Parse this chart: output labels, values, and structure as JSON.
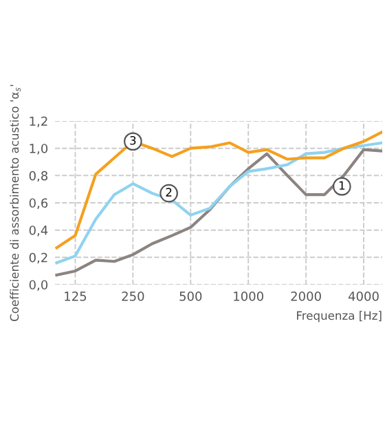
{
  "chart_data": {
    "type": "line",
    "xlabel": "Frequenza [Hz]",
    "ylabel": "Coefficiente di assorbimento acustico 'α$_{s}$'",
    "log": "x",
    "x": [
      100,
      125,
      160,
      200,
      250,
      315,
      400,
      500,
      630,
      800,
      1000,
      1250,
      1600,
      2000,
      2500,
      3150,
      4000,
      5000
    ],
    "series": [
      {
        "color": "#8c8480",
        "values": [
          0.07,
          0.1,
          0.18,
          0.17,
          0.22,
          0.3,
          0.36,
          0.42,
          0.55,
          0.72,
          0.85,
          0.96,
          0.8,
          0.66,
          0.66,
          0.8,
          0.99,
          0.98
        ]
      },
      {
        "color": "#8fd3f0",
        "values": [
          0.16,
          0.21,
          0.48,
          0.66,
          0.74,
          0.67,
          0.62,
          0.51,
          0.56,
          0.72,
          0.83,
          0.85,
          0.88,
          0.96,
          0.97,
          1.0,
          1.02,
          1.04
        ]
      },
      {
        "color": "#f5a01e",
        "values": [
          0.27,
          0.36,
          0.81,
          0.93,
          1.05,
          1.0,
          0.94,
          1.0,
          1.01,
          1.04,
          0.97,
          0.99,
          0.92,
          0.93,
          0.93,
          1.0,
          1.05,
          1.12
        ]
      }
    ],
    "annotations": [
      {
        "text": "1",
        "x": 3080,
        "y": 0.72
      },
      {
        "text": "2",
        "x": 385,
        "y": 0.67
      },
      {
        "text": "3",
        "x": 250,
        "y": 1.05
      }
    ],
    "xlim": [
      98,
      5000
    ],
    "ylim": [
      0,
      1.2
    ],
    "xticks": [
      125,
      250,
      500,
      1000,
      2000,
      4000
    ],
    "yticks": [
      {
        "value": 0,
        "label": "0,0"
      },
      {
        "value": 0.2,
        "label": "0,2"
      },
      {
        "value": 0.4,
        "label": "0,4"
      },
      {
        "value": 0.6,
        "label": "0,6"
      },
      {
        "value": 0.8,
        "label": "0,8"
      },
      {
        "value": 1.0,
        "label": "1,0"
      },
      {
        "value": 1.2,
        "label": "1,2"
      }
    ],
    "grid": true,
    "marker": "none",
    "line_style": "solid"
  }
}
